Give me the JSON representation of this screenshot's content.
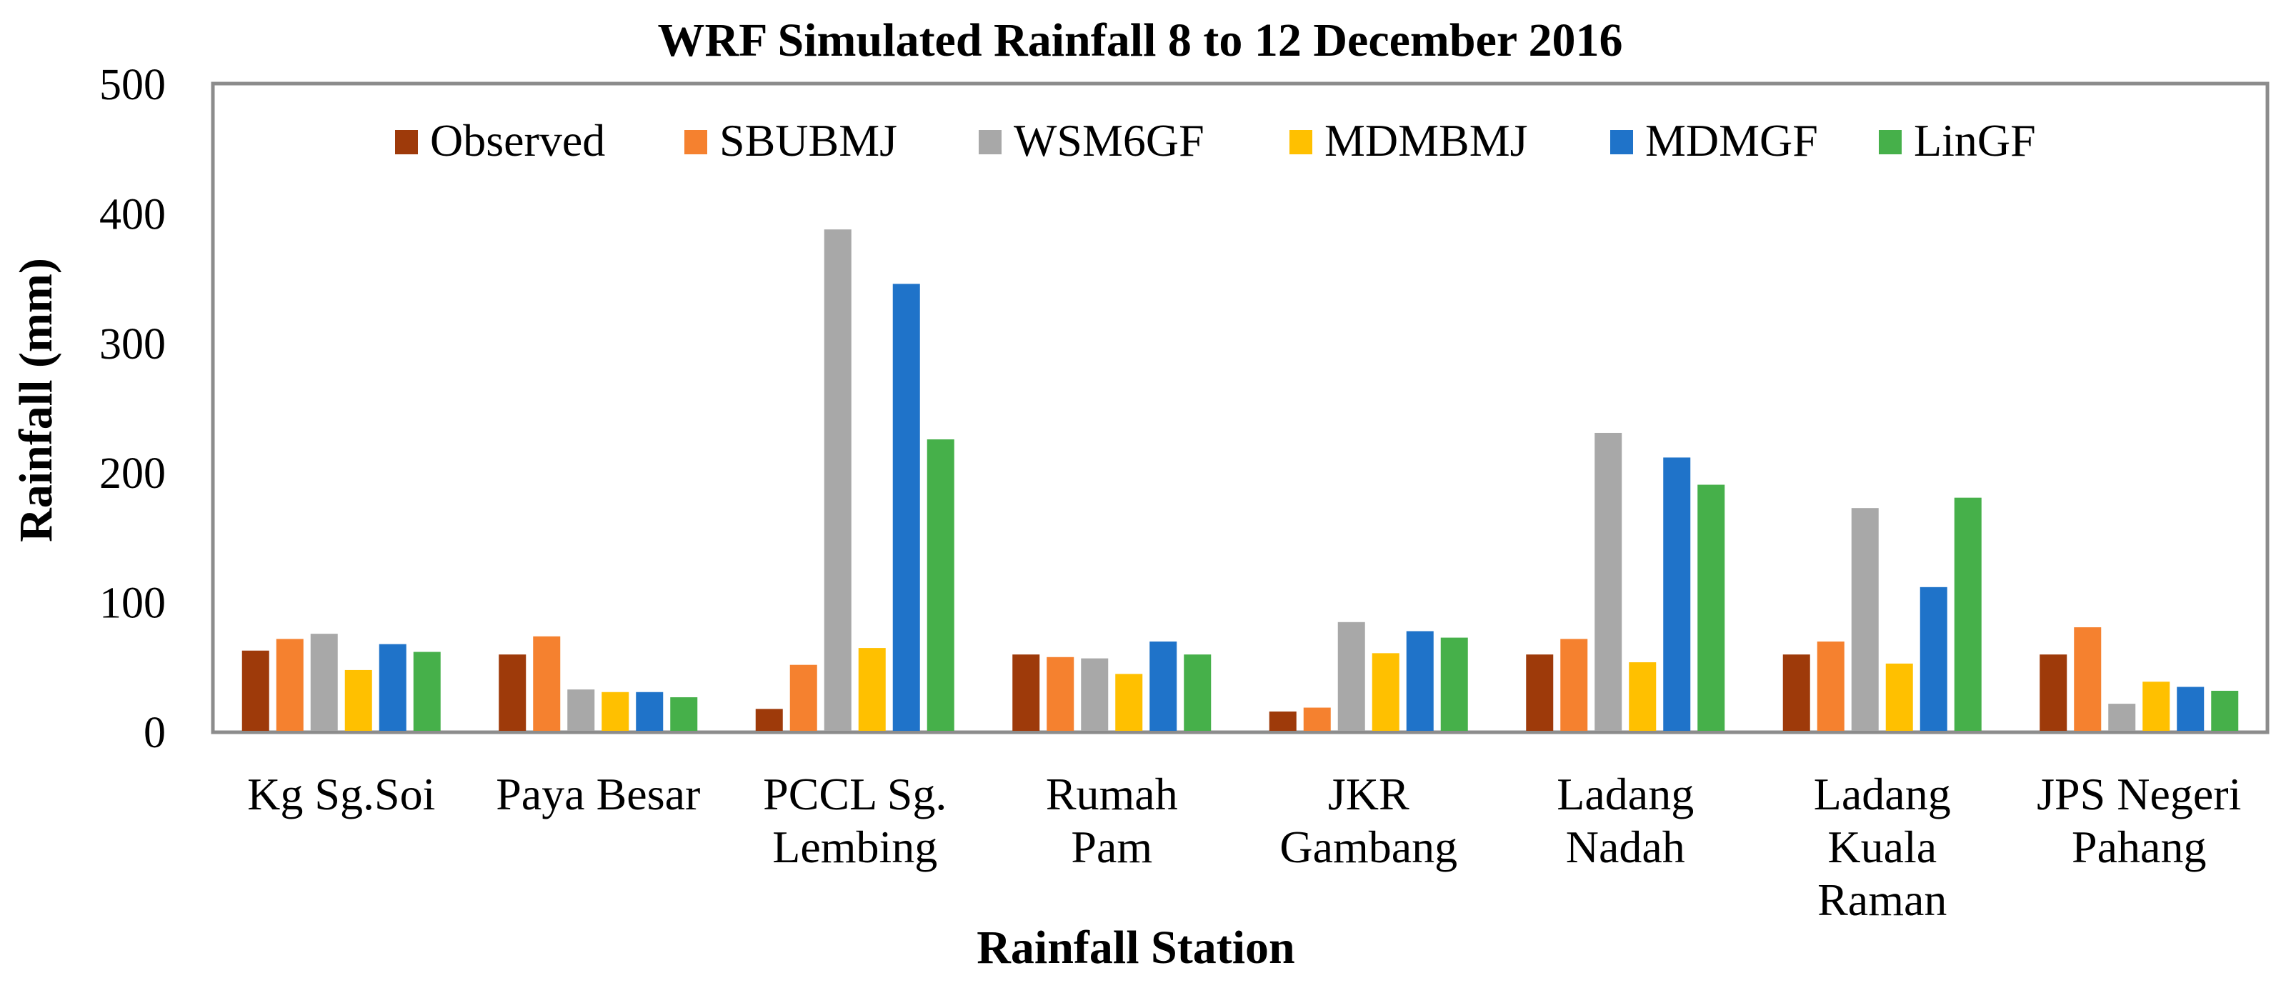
{
  "chart_data": {
    "type": "bar",
    "title": "WRF Simulated Rainfall 8 to 12 December 2016",
    "xlabel": "Rainfall Station",
    "ylabel": "Rainfall (mm)",
    "ylim": [
      0,
      500
    ],
    "yticks": [
      "0",
      "100",
      "200",
      "300",
      "400",
      "500"
    ],
    "grid": false,
    "legend_position": "top",
    "categories": [
      [
        "Kg Sg.Soi"
      ],
      [
        "Paya Besar"
      ],
      [
        "PCCL Sg.",
        "Lembing"
      ],
      [
        "Rumah",
        "Pam"
      ],
      [
        "JKR",
        "Gambang"
      ],
      [
        "Ladang",
        "Nadah"
      ],
      [
        "Ladang",
        "Kuala",
        "Raman"
      ],
      [
        "JPS Negeri",
        "Pahang"
      ]
    ],
    "series": [
      {
        "name": "Observed",
        "color": "#9E3A0A",
        "values": [
          63,
          60,
          18,
          60,
          16,
          60,
          60,
          60
        ]
      },
      {
        "name": "SBUBMJ",
        "color": "#F5812F",
        "values": [
          72,
          74,
          52,
          58,
          19,
          72,
          70,
          81
        ]
      },
      {
        "name": "WSM6GF",
        "color": "#A8A8A8",
        "values": [
          76,
          33,
          388,
          57,
          85,
          231,
          173,
          22
        ]
      },
      {
        "name": "MDMBMJ",
        "color": "#FFC000",
        "values": [
          48,
          31,
          65,
          45,
          61,
          54,
          53,
          39
        ]
      },
      {
        "name": "MDMGF",
        "color": "#1F73C9",
        "values": [
          68,
          31,
          346,
          70,
          78,
          212,
          112,
          35
        ]
      },
      {
        "name": "LinGF",
        "color": "#46B04A",
        "values": [
          62,
          27,
          226,
          60,
          73,
          191,
          181,
          32
        ]
      }
    ]
  }
}
